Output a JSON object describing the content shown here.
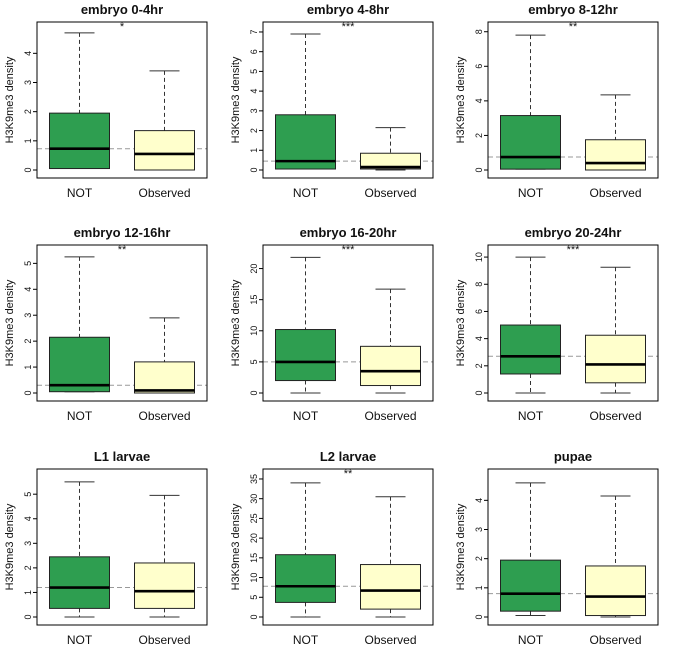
{
  "colors": {
    "not_fill": "#2e9e50",
    "observed_fill": "#ffffcc",
    "frame": "#000000",
    "reference_line": "#999999"
  },
  "chart_data": [
    {
      "type": "box",
      "title": "embryo 0-4hr",
      "significance": "*",
      "ylabel": "H3K9me3 density",
      "categories": [
        "NOT",
        "Observed"
      ],
      "ylim": [
        0,
        4.8
      ],
      "yticks": [
        0,
        1,
        2,
        3,
        4
      ],
      "yticklabels": [
        "0",
        "1",
        "2",
        "3",
        "4"
      ],
      "reference_line": 0.73,
      "boxes": [
        {
          "min": 0.05,
          "q1": 0.05,
          "median": 0.73,
          "q3": 1.95,
          "max": 4.7
        },
        {
          "min": 0.0,
          "q1": 0.0,
          "median": 0.55,
          "q3": 1.35,
          "max": 3.4
        }
      ]
    },
    {
      "type": "box",
      "title": "embryo 4-8hr",
      "significance": "***",
      "ylabel": "H3K9me3 density",
      "categories": [
        "NOT",
        "Observed"
      ],
      "ylim": [
        0,
        7.1
      ],
      "yticks": [
        0,
        1,
        2,
        3,
        4,
        5,
        6,
        7
      ],
      "yticklabels": [
        "0",
        "1",
        "2",
        "3",
        "4",
        "5",
        "6",
        "7"
      ],
      "reference_line": 0.45,
      "boxes": [
        {
          "min": 0.05,
          "q1": 0.05,
          "median": 0.45,
          "q3": 2.8,
          "max": 6.9
        },
        {
          "min": 0.0,
          "q1": 0.05,
          "median": 0.15,
          "q3": 0.85,
          "max": 2.15
        }
      ]
    },
    {
      "type": "box",
      "title": "embryo 8-12hr",
      "significance": "**",
      "ylabel": "H3K9me3 density",
      "categories": [
        "NOT",
        "Observed"
      ],
      "ylim": [
        0,
        8.1
      ],
      "yticks": [
        0,
        2,
        4,
        6,
        8
      ],
      "yticklabels": [
        "0",
        "2",
        "4",
        "6",
        "8"
      ],
      "reference_line": 0.75,
      "boxes": [
        {
          "min": 0.05,
          "q1": 0.05,
          "median": 0.75,
          "q3": 3.15,
          "max": 7.8
        },
        {
          "min": 0.0,
          "q1": 0.0,
          "median": 0.4,
          "q3": 1.75,
          "max": 4.35
        }
      ]
    },
    {
      "type": "box",
      "title": "embryo 12-16hr",
      "significance": "**",
      "ylabel": "H3K9me3 density",
      "categories": [
        "NOT",
        "Observed"
      ],
      "ylim": [
        0,
        5.4
      ],
      "yticks": [
        0,
        1,
        2,
        3,
        4,
        5
      ],
      "yticklabels": [
        "0",
        "1",
        "2",
        "3",
        "4",
        "5"
      ],
      "reference_line": 0.3,
      "boxes": [
        {
          "min": 0.05,
          "q1": 0.05,
          "median": 0.3,
          "q3": 2.15,
          "max": 5.25
        },
        {
          "min": 0.0,
          "q1": 0.0,
          "median": 0.1,
          "q3": 1.2,
          "max": 2.9
        }
      ]
    },
    {
      "type": "box",
      "title": "embryo 16-20hr",
      "significance": "***",
      "ylabel": "H3K9me3 density",
      "categories": [
        "NOT",
        "Observed"
      ],
      "ylim": [
        0,
        22.5
      ],
      "yticks": [
        0,
        5,
        10,
        15,
        20
      ],
      "yticklabels": [
        "0",
        "5",
        "10",
        "15",
        "20"
      ],
      "reference_line": 5.0,
      "boxes": [
        {
          "min": 0.0,
          "q1": 2.0,
          "median": 5.0,
          "q3": 10.2,
          "max": 21.8
        },
        {
          "min": 0.0,
          "q1": 1.2,
          "median": 3.5,
          "q3": 7.5,
          "max": 16.7
        }
      ]
    },
    {
      "type": "box",
      "title": "embryo 20-24hr",
      "significance": "***",
      "ylabel": "H3K9me3 density",
      "categories": [
        "NOT",
        "Observed"
      ],
      "ylim": [
        0,
        10.3
      ],
      "yticks": [
        0,
        2,
        4,
        6,
        8,
        10
      ],
      "yticklabels": [
        "0",
        "2",
        "4",
        "6",
        "8",
        "10"
      ],
      "reference_line": 2.7,
      "boxes": [
        {
          "min": 0.0,
          "q1": 1.4,
          "median": 2.7,
          "q3": 5.0,
          "max": 10.0
        },
        {
          "min": 0.0,
          "q1": 0.75,
          "median": 2.1,
          "q3": 4.25,
          "max": 9.25
        }
      ]
    },
    {
      "type": "box",
      "title": "L1 larvae",
      "significance": "",
      "ylabel": "H3K9me3 density",
      "categories": [
        "NOT",
        "Observed"
      ],
      "ylim": [
        0,
        5.7
      ],
      "yticks": [
        0,
        1,
        2,
        3,
        4,
        5
      ],
      "yticklabels": [
        "0",
        "1",
        "2",
        "3",
        "4",
        "5"
      ],
      "reference_line": 1.2,
      "boxes": [
        {
          "min": 0.0,
          "q1": 0.35,
          "median": 1.2,
          "q3": 2.45,
          "max": 5.5
        },
        {
          "min": 0.0,
          "q1": 0.35,
          "median": 1.05,
          "q3": 2.2,
          "max": 4.95
        }
      ]
    },
    {
      "type": "box",
      "title": "L2 larvae",
      "significance": "**",
      "ylabel": "H3K9me3 density",
      "categories": [
        "NOT",
        "Observed"
      ],
      "ylim": [
        0,
        35.5
      ],
      "yticks": [
        0,
        5,
        10,
        15,
        20,
        25,
        30,
        35
      ],
      "yticklabels": [
        "0",
        "5",
        "10",
        "15",
        "20",
        "25",
        "30",
        "35"
      ],
      "reference_line": 7.8,
      "boxes": [
        {
          "min": 0.0,
          "q1": 3.7,
          "median": 7.8,
          "q3": 15.8,
          "max": 34.0
        },
        {
          "min": 0.0,
          "q1": 2.0,
          "median": 6.7,
          "q3": 13.3,
          "max": 30.5
        }
      ]
    },
    {
      "type": "box",
      "title": "pupae",
      "significance": "",
      "ylabel": "H3K9me3 density",
      "categories": [
        "NOT",
        "Observed"
      ],
      "ylim": [
        0,
        4.8
      ],
      "yticks": [
        0,
        1,
        2,
        3,
        4
      ],
      "yticklabels": [
        "0",
        "1",
        "2",
        "3",
        "4"
      ],
      "reference_line": 0.8,
      "boxes": [
        {
          "min": 0.05,
          "q1": 0.2,
          "median": 0.8,
          "q3": 1.95,
          "max": 4.6
        },
        {
          "min": 0.0,
          "q1": 0.05,
          "median": 0.7,
          "q3": 1.75,
          "max": 4.15
        }
      ]
    }
  ]
}
